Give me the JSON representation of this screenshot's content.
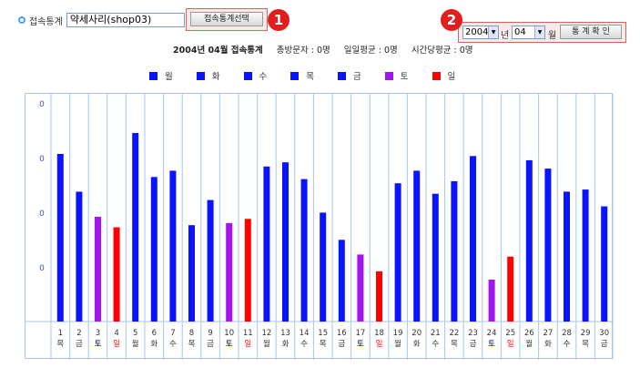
{
  "top": {
    "label": "접속통계",
    "shop_value": "약세사리(shop03)",
    "select_button": "접속통계선택",
    "badge1": "1",
    "badge2": "2",
    "year": "2004",
    "year_unit": "년",
    "month": "04",
    "month_unit": "월",
    "confirm_button": "통 계 확 인"
  },
  "stats": {
    "title": "2004년 04월 접속통계",
    "total": "총방문자 : 0명",
    "daily_avg": "일일평균 : 0명",
    "hourly_avg": "시간당평균 : 0명"
  },
  "legend": [
    {
      "name": "월",
      "color": "#0a14ff"
    },
    {
      "name": "화",
      "color": "#0a14ff"
    },
    {
      "name": "수",
      "color": "#0a14ff"
    },
    {
      "name": "목",
      "color": "#0a14ff"
    },
    {
      "name": "금",
      "color": "#0a14ff"
    },
    {
      "name": "토",
      "color": "#a116f0"
    },
    {
      "name": "일",
      "color": "#ff0000"
    }
  ],
  "chart_data": {
    "type": "bar",
    "y_ticks": [
      "0",
      "0",
      "0",
      "0"
    ],
    "days": [
      {
        "day": "1",
        "weekday": "목",
        "value": 0.8
      },
      {
        "day": "2",
        "weekday": "금",
        "value": 0.62
      },
      {
        "day": "3",
        "weekday": "토",
        "value": 0.5
      },
      {
        "day": "4",
        "weekday": "일",
        "value": 0.45
      },
      {
        "day": "5",
        "weekday": "월",
        "value": 0.9
      },
      {
        "day": "6",
        "weekday": "화",
        "value": 0.69
      },
      {
        "day": "7",
        "weekday": "수",
        "value": 0.72
      },
      {
        "day": "8",
        "weekday": "목",
        "value": 0.46
      },
      {
        "day": "9",
        "weekday": "금",
        "value": 0.58
      },
      {
        "day": "10",
        "weekday": "토",
        "value": 0.47
      },
      {
        "day": "11",
        "weekday": "일",
        "value": 0.49
      },
      {
        "day": "12",
        "weekday": "월",
        "value": 0.74
      },
      {
        "day": "13",
        "weekday": "화",
        "value": 0.76
      },
      {
        "day": "14",
        "weekday": "수",
        "value": 0.68
      },
      {
        "day": "15",
        "weekday": "목",
        "value": 0.52
      },
      {
        "day": "16",
        "weekday": "금",
        "value": 0.39
      },
      {
        "day": "17",
        "weekday": "토",
        "value": 0.32
      },
      {
        "day": "18",
        "weekday": "일",
        "value": 0.24
      },
      {
        "day": "19",
        "weekday": "월",
        "value": 0.66
      },
      {
        "day": "20",
        "weekday": "화",
        "value": 0.72
      },
      {
        "day": "21",
        "weekday": "수",
        "value": 0.61
      },
      {
        "day": "22",
        "weekday": "목",
        "value": 0.67
      },
      {
        "day": "23",
        "weekday": "금",
        "value": 0.79
      },
      {
        "day": "24",
        "weekday": "토",
        "value": 0.2
      },
      {
        "day": "25",
        "weekday": "일",
        "value": 0.31
      },
      {
        "day": "26",
        "weekday": "월",
        "value": 0.77
      },
      {
        "day": "27",
        "weekday": "화",
        "value": 0.73
      },
      {
        "day": "28",
        "weekday": "수",
        "value": 0.62
      },
      {
        "day": "29",
        "weekday": "목",
        "value": 0.63
      },
      {
        "day": "30",
        "weekday": "금",
        "value": 0.55
      }
    ],
    "colors": {
      "weekday": "#0a14ff",
      "saturday": "#a116f0",
      "sunday": "#ff0000",
      "sat_label": "#0000cc",
      "sun_label": "#ff0000",
      "grid": "#a9c6e9",
      "tick": "#3355cc"
    }
  }
}
